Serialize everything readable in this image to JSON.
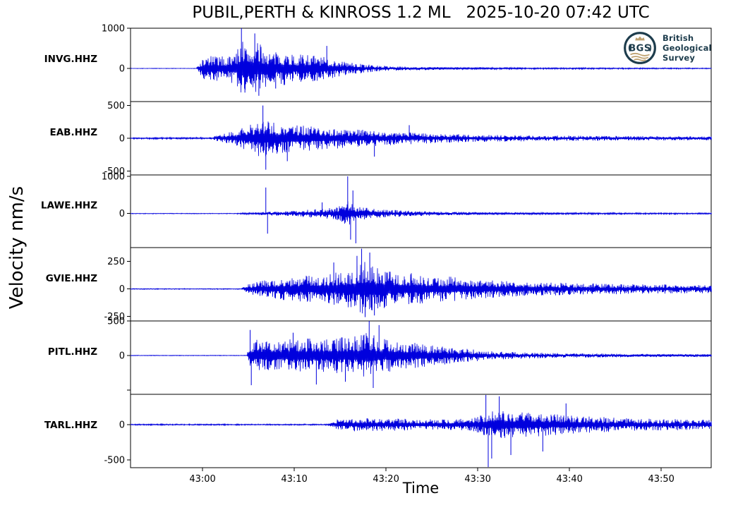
{
  "header": {
    "title": "PUBIL,PERTH & KINROSS 1.2 ML   2025-10-20 07:42 UTC"
  },
  "logo": {
    "monogram": "BGS",
    "lines": [
      "British",
      "Geological",
      "Survey"
    ],
    "navy": "#1d3c4c",
    "gold": "#bfa271"
  },
  "chart_data": {
    "type": "line",
    "title": "PUBIL,PERTH & KINROSS 1.2 ML   2025-10-20 07:42 UTC",
    "xlabel": "Time",
    "ylabel": "Velocity nm/s",
    "trace_color": "#0000dd",
    "axis_color": "#000000",
    "grid": false,
    "x_window": {
      "start": "07:42:52 UTC",
      "end": "07:43:55 UTC",
      "tick_interval_s": 10
    },
    "x_ticks": [
      {
        "label": "43:00",
        "f": 0.124
      },
      {
        "label": "43:10",
        "f": 0.282
      },
      {
        "label": "43:20",
        "f": 0.44
      },
      {
        "label": "43:30",
        "f": 0.598
      },
      {
        "label": "43:40",
        "f": 0.756
      },
      {
        "label": "43:50",
        "f": 0.914
      }
    ],
    "stations": [
      {
        "id": "INVG.HHZ",
        "seed": 7,
        "ylim": [
          -824,
          1000
        ],
        "yticks": [
          {
            "v": 1000,
            "label": "1000"
          },
          {
            "v": 0,
            "label": "0"
          }
        ],
        "unlabeled_ticks": [],
        "envelope": [
          [
            0,
            5
          ],
          [
            0.113,
            5
          ],
          [
            0.119,
            150
          ],
          [
            0.128,
            300
          ],
          [
            0.14,
            330
          ],
          [
            0.164,
            300
          ],
          [
            0.182,
            420
          ],
          [
            0.191,
            800
          ],
          [
            0.2,
            550
          ],
          [
            0.219,
            650
          ],
          [
            0.231,
            500
          ],
          [
            0.249,
            400
          ],
          [
            0.267,
            430
          ],
          [
            0.286,
            330
          ],
          [
            0.304,
            380
          ],
          [
            0.328,
            300
          ],
          [
            0.346,
            250
          ],
          [
            0.371,
            170
          ],
          [
            0.395,
            120
          ],
          [
            0.431,
            70
          ],
          [
            0.48,
            45
          ],
          [
            0.565,
            30
          ],
          [
            0.687,
            22
          ],
          [
            1,
            13
          ]
        ],
        "spikes": [
          [
            0.191,
            1000
          ],
          [
            0.197,
            -600
          ],
          [
            0.214,
            870
          ],
          [
            0.221,
            -680
          ],
          [
            0.25,
            -500
          ],
          [
            0.338,
            560
          ]
        ]
      },
      {
        "id": "EAB.HHZ",
        "seed": 13,
        "ylim": [
          -560,
          560
        ],
        "yticks": [
          {
            "v": 500,
            "label": "500"
          },
          {
            "v": 0,
            "label": "0"
          },
          {
            "v": -500,
            "label": "-500"
          }
        ],
        "unlabeled_ticks": [],
        "envelope": [
          [
            0,
            13
          ],
          [
            0.14,
            13
          ],
          [
            0.15,
            50
          ],
          [
            0.17,
            90
          ],
          [
            0.19,
            150
          ],
          [
            0.21,
            230
          ],
          [
            0.225,
            320
          ],
          [
            0.24,
            260
          ],
          [
            0.27,
            220
          ],
          [
            0.31,
            190
          ],
          [
            0.35,
            160
          ],
          [
            0.4,
            130
          ],
          [
            0.46,
            100
          ],
          [
            0.52,
            75
          ],
          [
            0.6,
            55
          ],
          [
            0.72,
            42
          ],
          [
            0.85,
            35
          ],
          [
            1,
            30
          ]
        ],
        "spikes": [
          [
            0.228,
            500
          ],
          [
            0.233,
            -480
          ],
          [
            0.27,
            -350
          ],
          [
            0.42,
            -280
          ],
          [
            0.48,
            200
          ]
        ]
      },
      {
        "id": "LAWE.HHZ",
        "seed": 21,
        "ylim": [
          -915,
          1038
        ],
        "yticks": [
          {
            "v": 1000,
            "label": "1000"
          },
          {
            "v": 0,
            "label": "0"
          }
        ],
        "unlabeled_ticks": [],
        "envelope": [
          [
            0,
            9
          ],
          [
            0.18,
            9
          ],
          [
            0.19,
            25
          ],
          [
            0.22,
            35
          ],
          [
            0.25,
            60
          ],
          [
            0.28,
            80
          ],
          [
            0.31,
            110
          ],
          [
            0.34,
            140
          ],
          [
            0.36,
            220
          ],
          [
            0.375,
            380
          ],
          [
            0.385,
            260
          ],
          [
            0.4,
            170
          ],
          [
            0.43,
            120
          ],
          [
            0.47,
            80
          ],
          [
            0.53,
            50
          ],
          [
            0.62,
            35
          ],
          [
            0.75,
            26
          ],
          [
            1,
            18
          ]
        ],
        "spikes": [
          [
            0.233,
            700
          ],
          [
            0.236,
            -540
          ],
          [
            0.33,
            300
          ],
          [
            0.374,
            1000
          ],
          [
            0.379,
            -700
          ],
          [
            0.383,
            620
          ],
          [
            0.388,
            -800
          ]
        ]
      },
      {
        "id": "GVIE.HHZ",
        "seed": 5,
        "ylim": [
          -290,
          375
        ],
        "yticks": [
          {
            "v": 250,
            "label": "250"
          },
          {
            "v": 0,
            "label": "0"
          },
          {
            "v": -250,
            "label": "-250"
          }
        ],
        "unlabeled_ticks": [],
        "envelope": [
          [
            0,
            4
          ],
          [
            0.19,
            4
          ],
          [
            0.2,
            45
          ],
          [
            0.23,
            80
          ],
          [
            0.26,
            100
          ],
          [
            0.3,
            120
          ],
          [
            0.34,
            140
          ],
          [
            0.37,
            160
          ],
          [
            0.39,
            220
          ],
          [
            0.405,
            250
          ],
          [
            0.42,
            200
          ],
          [
            0.45,
            160
          ],
          [
            0.49,
            140
          ],
          [
            0.53,
            120
          ],
          [
            0.58,
            100
          ],
          [
            0.63,
            80
          ],
          [
            0.7,
            62
          ],
          [
            0.78,
            52
          ],
          [
            0.87,
            45
          ],
          [
            1,
            38
          ]
        ],
        "spikes": [
          [
            0.35,
            240
          ],
          [
            0.39,
            300
          ],
          [
            0.398,
            365
          ],
          [
            0.404,
            -255
          ],
          [
            0.412,
            330
          ],
          [
            0.42,
            -240
          ]
        ]
      },
      {
        "id": "PITL.HHZ",
        "seed": 9,
        "ylim": [
          -562,
          500
        ],
        "yticks": [
          {
            "v": 500,
            "label": "500"
          },
          {
            "v": 0,
            "label": "0"
          }
        ],
        "unlabeled_ticks": [
          -500
        ],
        "envelope": [
          [
            0,
            4
          ],
          [
            0.2,
            4
          ],
          [
            0.206,
            170
          ],
          [
            0.215,
            230
          ],
          [
            0.24,
            210
          ],
          [
            0.27,
            230
          ],
          [
            0.3,
            250
          ],
          [
            0.33,
            240
          ],
          [
            0.36,
            260
          ],
          [
            0.39,
            280
          ],
          [
            0.41,
            340
          ],
          [
            0.43,
            260
          ],
          [
            0.46,
            220
          ],
          [
            0.5,
            180
          ],
          [
            0.54,
            140
          ],
          [
            0.58,
            95
          ],
          [
            0.62,
            65
          ],
          [
            0.68,
            45
          ],
          [
            0.75,
            33
          ],
          [
            0.84,
            26
          ],
          [
            1,
            20
          ]
        ],
        "spikes": [
          [
            0.206,
            370
          ],
          [
            0.208,
            -430
          ],
          [
            0.28,
            330
          ],
          [
            0.32,
            -420
          ],
          [
            0.37,
            -380
          ],
          [
            0.411,
            500
          ],
          [
            0.418,
            -470
          ],
          [
            0.428,
            440
          ]
        ]
      },
      {
        "id": "TARL.HHZ",
        "seed": 3,
        "ylim": [
          -609,
          429
        ],
        "yticks": [
          {
            "v": 0,
            "label": "0"
          },
          {
            "v": -500,
            "label": "-500"
          }
        ],
        "unlabeled_ticks": [],
        "envelope": [
          [
            0,
            9
          ],
          [
            0.34,
            9
          ],
          [
            0.355,
            75
          ],
          [
            0.38,
            95
          ],
          [
            0.42,
            90
          ],
          [
            0.46,
            85
          ],
          [
            0.5,
            80
          ],
          [
            0.54,
            75
          ],
          [
            0.58,
            85
          ],
          [
            0.6,
            120
          ],
          [
            0.615,
            190
          ],
          [
            0.63,
            230
          ],
          [
            0.65,
            200
          ],
          [
            0.67,
            180
          ],
          [
            0.7,
            170
          ],
          [
            0.74,
            145
          ],
          [
            0.79,
            115
          ],
          [
            0.84,
            100
          ],
          [
            0.9,
            85
          ],
          [
            1,
            70
          ]
        ],
        "spikes": [
          [
            0.612,
            420
          ],
          [
            0.616,
            -600
          ],
          [
            0.622,
            -480
          ],
          [
            0.635,
            400
          ],
          [
            0.655,
            -430
          ],
          [
            0.71,
            -380
          ],
          [
            0.75,
            300
          ]
        ]
      }
    ]
  }
}
